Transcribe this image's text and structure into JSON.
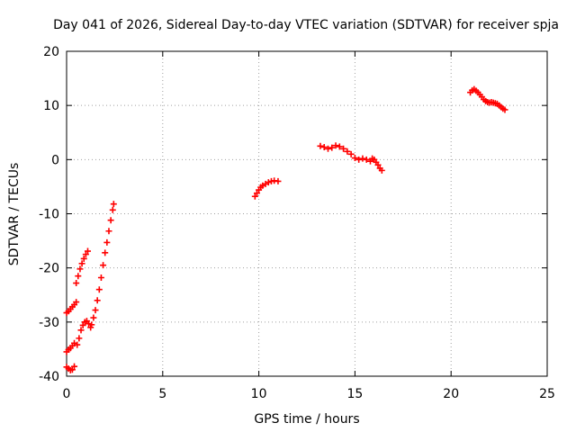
{
  "chart_data": {
    "type": "scatter",
    "title": "Day 041 of 2026, Sidereal Day-to-day VTEC variation (SDTVAR) for receiver spja",
    "xlabel": "GPS time / hours",
    "ylabel": "SDTVAR / TECUs",
    "xlim": [
      0,
      25
    ],
    "ylim": [
      -40,
      20
    ],
    "xticks": [
      0,
      5,
      10,
      15,
      20,
      25
    ],
    "yticks": [
      -40,
      -30,
      -20,
      -10,
      0,
      10,
      20
    ],
    "grid": true,
    "marker": "plus",
    "color": "#ff0000",
    "series": [
      {
        "name": "SDTVAR",
        "segments": [
          {
            "x": [
              0.0,
              0.1,
              0.2,
              0.3,
              0.4,
              0.5
            ],
            "y": [
              -28.3,
              -28.0,
              -27.6,
              -27.2,
              -26.8,
              -26.3
            ]
          },
          {
            "x": [
              0.0,
              0.1,
              0.2,
              0.3,
              0.4
            ],
            "y": [
              -35.5,
              -35.1,
              -34.8,
              -34.4,
              -33.9
            ]
          },
          {
            "x": [
              0.0,
              0.1,
              0.2,
              0.3,
              0.4
            ],
            "y": [
              -38.3,
              -38.6,
              -38.9,
              -38.8,
              -38.2
            ]
          },
          {
            "x": [
              0.5,
              0.6,
              0.7,
              0.8,
              0.9,
              1.0,
              1.1
            ],
            "y": [
              -22.8,
              -21.5,
              -20.2,
              -19.2,
              -18.3,
              -17.5,
              -16.9
            ]
          },
          {
            "x": [
              0.55,
              0.65,
              0.75,
              0.85,
              0.95,
              1.05,
              1.15,
              1.25
            ],
            "y": [
              -34.2,
              -33.0,
              -31.5,
              -30.6,
              -30.0,
              -29.8,
              -30.3,
              -31.0
            ]
          },
          {
            "x": [
              1.3,
              1.4,
              1.5,
              1.6,
              1.7,
              1.8,
              1.9,
              2.0,
              2.1,
              2.2,
              2.3,
              2.4,
              2.45
            ],
            "y": [
              -30.5,
              -29.2,
              -27.8,
              -26.0,
              -24.0,
              -21.8,
              -19.5,
              -17.2,
              -15.3,
              -13.2,
              -11.2,
              -9.3,
              -8.2
            ]
          },
          {
            "x": [
              9.8,
              9.9,
              10.0,
              10.1,
              10.2,
              10.35,
              10.5,
              10.65,
              10.8,
              11.0
            ],
            "y": [
              -6.8,
              -6.2,
              -5.6,
              -5.1,
              -4.8,
              -4.5,
              -4.2,
              -4.0,
              -3.9,
              -4.0
            ]
          },
          {
            "x": [
              13.2,
              13.4,
              13.6,
              13.8,
              14.0,
              14.2,
              14.4,
              14.6,
              14.8,
              15.0,
              15.2,
              15.4,
              15.6,
              15.8,
              15.9,
              16.0,
              16.1,
              16.2,
              16.3,
              16.4
            ],
            "y": [
              2.5,
              2.3,
              2.0,
              2.2,
              2.6,
              2.4,
              2.0,
              1.5,
              1.0,
              0.3,
              0.0,
              0.2,
              0.0,
              -0.3,
              0.2,
              0.0,
              -0.5,
              -1.0,
              -1.6,
              -2.0
            ]
          },
          {
            "x": [
              21.0,
              21.1,
              21.2,
              21.3,
              21.4,
              21.5,
              21.6,
              21.7,
              21.8,
              21.9,
              22.0,
              22.1,
              22.2,
              22.3,
              22.4,
              22.5,
              22.6,
              22.7,
              22.8
            ],
            "y": [
              12.4,
              12.8,
              13.0,
              12.7,
              12.4,
              12.0,
              11.6,
              11.1,
              10.8,
              10.6,
              10.5,
              10.6,
              10.5,
              10.4,
              10.3,
              10.0,
              9.7,
              9.4,
              9.2
            ]
          }
        ]
      }
    ]
  }
}
